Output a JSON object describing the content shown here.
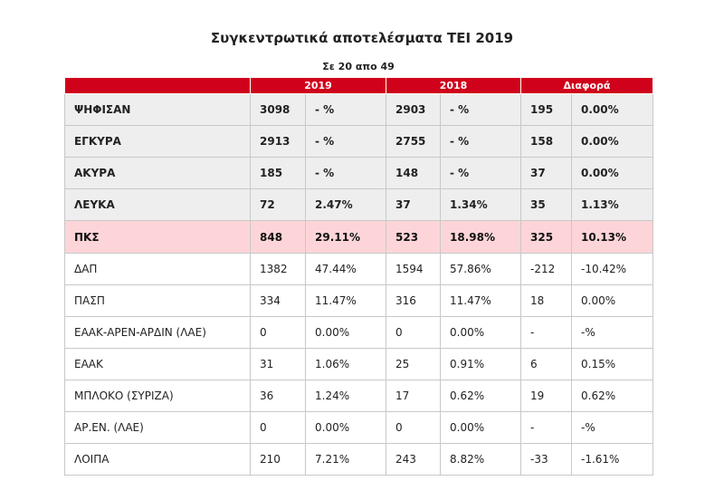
{
  "title": "Συγκεντρωτικά αποτελέσματα ΤΕΙ 2019",
  "subtitle": "Σε 20 απο 49",
  "headers": {
    "y1": "2019",
    "y2": "2018",
    "diff": "Διαφορά"
  },
  "rows": [
    {
      "name": "ΨΗΦΙΣΑΝ",
      "v2019": "3098",
      "p2019": "- %",
      "v2018": "2903",
      "p2018": "- %",
      "dv": "195",
      "dp": "0.00%"
    },
    {
      "name": "ΕΓΚΥΡΑ",
      "v2019": "2913",
      "p2019": "- %",
      "v2018": "2755",
      "p2018": "- %",
      "dv": "158",
      "dp": "0.00%"
    },
    {
      "name": "ΑΚΥΡΑ",
      "v2019": "185",
      "p2019": "- %",
      "v2018": "148",
      "p2018": "- %",
      "dv": "37",
      "dp": "0.00%"
    },
    {
      "name": "ΛΕΥΚΑ",
      "v2019": "72",
      "p2019": "2.47%",
      "v2018": "37",
      "p2018": "1.34%",
      "dv": "35",
      "dp": "1.13%"
    },
    {
      "name": "ΠΚΣ",
      "v2019": "848",
      "p2019": "29.11%",
      "v2018": "523",
      "p2018": "18.98%",
      "dv": "325",
      "dp": "10.13%"
    },
    {
      "name": "ΔΑΠ",
      "v2019": "1382",
      "p2019": "47.44%",
      "v2018": "1594",
      "p2018": "57.86%",
      "dv": "-212",
      "dp": "-10.42%"
    },
    {
      "name": "ΠΑΣΠ",
      "v2019": "334",
      "p2019": "11.47%",
      "v2018": "316",
      "p2018": "11.47%",
      "dv": "18",
      "dp": "0.00%"
    },
    {
      "name": "ΕΑΑΚ-ΑΡΕΝ-ΑΡΔΙΝ (ΛΑΕ)",
      "v2019": "0",
      "p2019": "0.00%",
      "v2018": "0",
      "p2018": "0.00%",
      "dv": "-",
      "dp": "-%"
    },
    {
      "name": "ΕΑΑΚ",
      "v2019": "31",
      "p2019": "1.06%",
      "v2018": "25",
      "p2018": "0.91%",
      "dv": "6",
      "dp": "0.15%"
    },
    {
      "name": "ΜΠΛΟΚΟ (ΣΥΡΙΖΑ)",
      "v2019": "36",
      "p2019": "1.24%",
      "v2018": "17",
      "p2018": "0.62%",
      "dv": "19",
      "dp": "0.62%"
    },
    {
      "name": "ΑΡ.ΕΝ. (ΛΑΕ)",
      "v2019": "0",
      "p2019": "0.00%",
      "v2018": "0",
      "p2018": "0.00%",
      "dv": "-",
      "dp": "-%"
    },
    {
      "name": "ΛΟΙΠΑ",
      "v2019": "210",
      "p2019": "7.21%",
      "v2018": "243",
      "p2018": "8.82%",
      "dv": "-33",
      "dp": "-1.61%"
    }
  ]
}
